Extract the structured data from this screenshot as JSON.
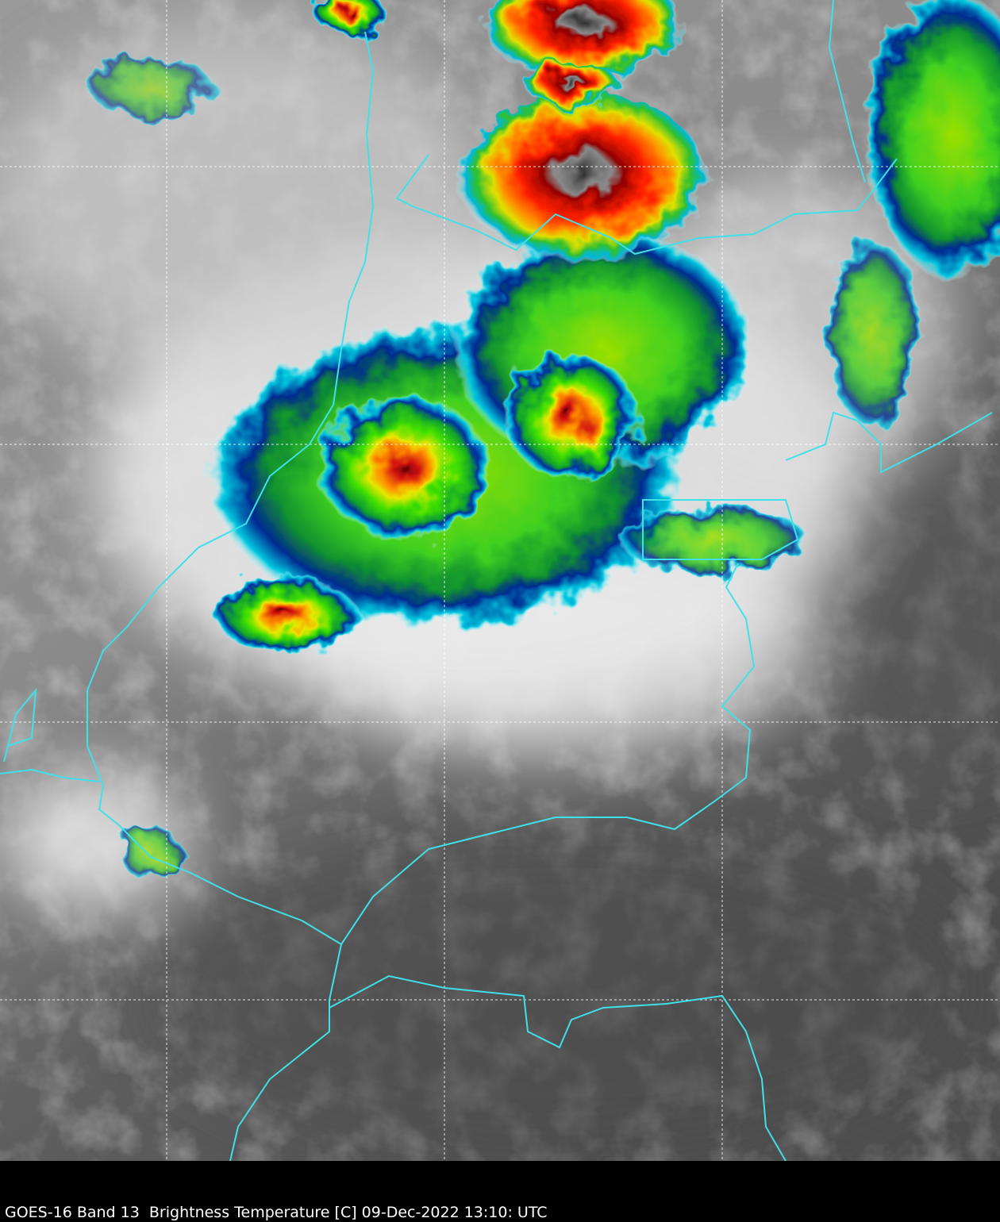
{
  "caption": "GOES-16 Band 13  Brightness Temperature [C] 09-Dec-2022 13:10: UTC"
}
